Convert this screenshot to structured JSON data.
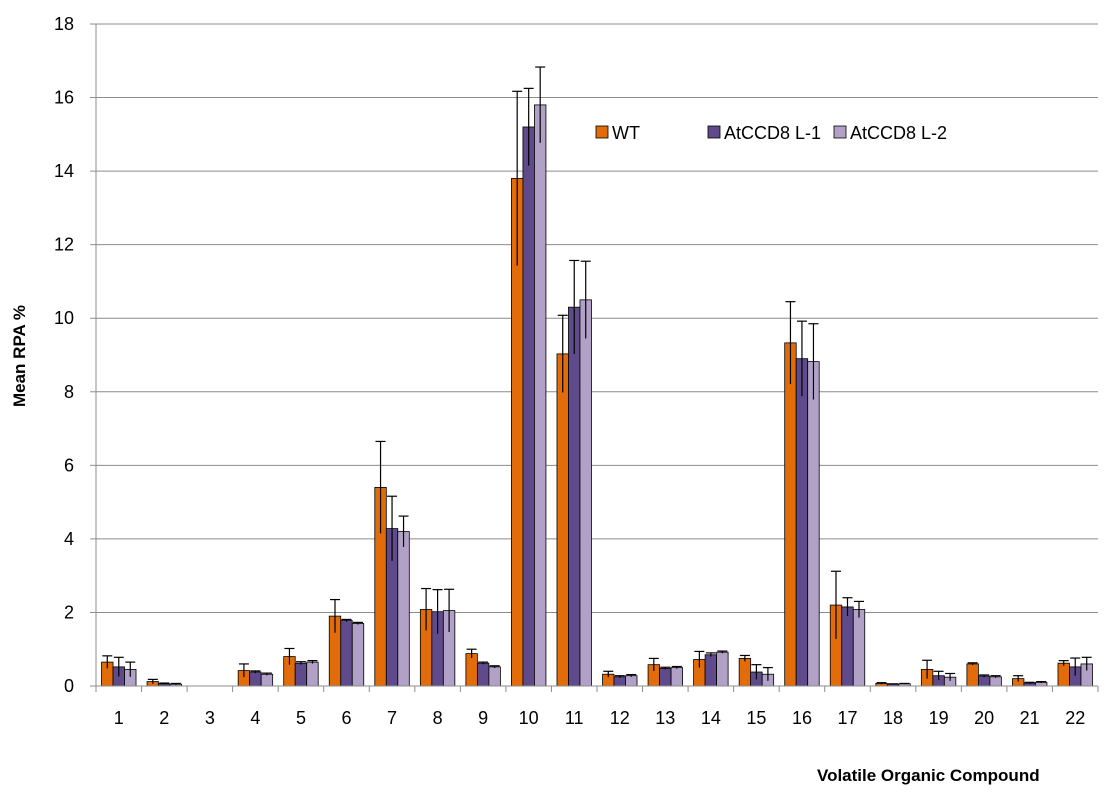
{
  "chart_data": {
    "type": "bar",
    "title": "",
    "xlabel": "Volatile Organic Compound",
    "ylabel": "Mean RPA %",
    "ylim": [
      0,
      18
    ],
    "y_ticks": [
      0,
      2,
      4,
      6,
      8,
      10,
      12,
      14,
      16,
      18
    ],
    "grid": true,
    "legend_position": "top-right",
    "categories": [
      "1",
      "2",
      "3",
      "4",
      "5",
      "6",
      "7",
      "8",
      "9",
      "10",
      "11",
      "12",
      "13",
      "14",
      "15",
      "16",
      "17",
      "18",
      "19",
      "20",
      "21",
      "22"
    ],
    "series": [
      {
        "name": "WT",
        "color": "#e36c0a",
        "values": [
          0.65,
          0.12,
          0.0,
          0.42,
          0.8,
          1.9,
          5.4,
          2.08,
          0.88,
          13.8,
          9.03,
          0.32,
          0.58,
          0.72,
          0.75,
          9.33,
          2.2,
          0.07,
          0.45,
          0.6,
          0.2,
          0.62
        ],
        "errors": [
          0.17,
          0.06,
          0.0,
          0.18,
          0.22,
          0.45,
          1.25,
          0.57,
          0.12,
          2.37,
          1.05,
          0.08,
          0.17,
          0.22,
          0.08,
          1.12,
          0.92,
          0.02,
          0.25,
          0.03,
          0.08,
          0.07
        ]
      },
      {
        "name": "AtCCD8 L-1",
        "color": "#5f4b8b",
        "values": [
          0.52,
          0.06,
          0.0,
          0.38,
          0.62,
          1.78,
          4.28,
          2.02,
          0.62,
          15.2,
          10.3,
          0.25,
          0.48,
          0.85,
          0.38,
          8.9,
          2.15,
          0.05,
          0.28,
          0.27,
          0.08,
          0.52
        ],
        "errors": [
          0.26,
          0.02,
          0.0,
          0.03,
          0.04,
          0.03,
          0.88,
          0.6,
          0.03,
          1.05,
          1.27,
          0.03,
          0.03,
          0.05,
          0.2,
          1.02,
          0.25,
          0.01,
          0.12,
          0.03,
          0.02,
          0.24
        ]
      },
      {
        "name": "AtCCD8 L-2",
        "color": "#b2a1c7",
        "values": [
          0.45,
          0.05,
          0.0,
          0.32,
          0.65,
          1.7,
          4.2,
          2.05,
          0.52,
          15.8,
          10.5,
          0.28,
          0.5,
          0.92,
          0.32,
          8.82,
          2.08,
          0.06,
          0.24,
          0.25,
          0.1,
          0.6
        ],
        "errors": [
          0.2,
          0.02,
          0.0,
          0.03,
          0.04,
          0.03,
          0.42,
          0.58,
          0.03,
          1.03,
          1.05,
          0.03,
          0.03,
          0.03,
          0.18,
          1.03,
          0.22,
          0.01,
          0.1,
          0.03,
          0.02,
          0.18
        ]
      }
    ]
  }
}
